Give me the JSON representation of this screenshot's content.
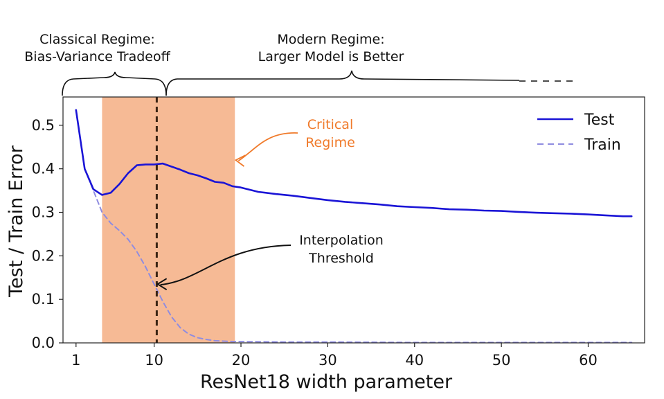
{
  "chart_data": {
    "type": "line",
    "xlabel": "ResNet18 width parameter",
    "ylabel": "Test / Train Error",
    "xlim": [
      -0.5,
      66.5
    ],
    "ylim": [
      0.0,
      0.565
    ],
    "x_ticks": [
      1,
      10,
      20,
      30,
      40,
      50,
      60
    ],
    "y_ticks": [
      0.0,
      0.1,
      0.2,
      0.3,
      0.4,
      0.5
    ],
    "y_tick_labels": [
      "0.0",
      "0.1",
      "0.2",
      "0.3",
      "0.4",
      "0.5"
    ],
    "grid": false,
    "legend": "top-right",
    "series": [
      {
        "name": "Test",
        "style": "solid",
        "color": "#1a14d6",
        "x": [
          1,
          2,
          3,
          4,
          5,
          6,
          7,
          8,
          9,
          10,
          11,
          12,
          13,
          14,
          15,
          16,
          17,
          18,
          19,
          20,
          22,
          24,
          26,
          28,
          30,
          32,
          34,
          36,
          38,
          40,
          42,
          44,
          46,
          48,
          50,
          52,
          54,
          56,
          58,
          60,
          62,
          64,
          65
        ],
        "values": [
          0.535,
          0.4,
          0.353,
          0.34,
          0.345,
          0.365,
          0.39,
          0.408,
          0.41,
          0.41,
          0.412,
          0.405,
          0.398,
          0.39,
          0.385,
          0.378,
          0.37,
          0.368,
          0.36,
          0.357,
          0.347,
          0.342,
          0.338,
          0.333,
          0.328,
          0.324,
          0.321,
          0.318,
          0.314,
          0.312,
          0.31,
          0.307,
          0.306,
          0.304,
          0.303,
          0.301,
          0.299,
          0.298,
          0.297,
          0.295,
          0.293,
          0.291,
          0.291
        ]
      },
      {
        "name": "Train",
        "style": "dashed",
        "color": "#8f8ce0",
        "x": [
          2,
          3,
          4,
          5,
          6,
          7,
          8,
          9,
          10,
          11,
          12,
          13,
          14,
          15,
          16,
          17,
          18,
          19,
          20,
          25,
          30,
          40,
          50,
          60,
          65
        ],
        "values": [
          0.4,
          0.35,
          0.3,
          0.275,
          0.258,
          0.238,
          0.21,
          0.175,
          0.135,
          0.095,
          0.06,
          0.035,
          0.02,
          0.012,
          0.008,
          0.005,
          0.004,
          0.003,
          0.003,
          0.002,
          0.002,
          0.001,
          0.001,
          0.001,
          0.001
        ]
      }
    ],
    "shaded_region": {
      "x_range": [
        4,
        19.3
      ],
      "color": "#f5b48c"
    },
    "vertical_line": {
      "x": 10.3,
      "style": "dashed",
      "color": "#3a2414"
    },
    "annotations": [
      {
        "text_lines": [
          "Critical",
          "Regime"
        ],
        "color": "#f07a2a",
        "arrow_target": [
          19.4,
          0.42
        ]
      },
      {
        "text_lines": [
          "Interpolation",
          "Threshold"
        ],
        "color": "#111111",
        "arrow_target": [
          10.4,
          0.135
        ]
      }
    ]
  },
  "regimes": {
    "classical": {
      "line1": "Classical Regime:",
      "line2": "Bias-Variance Tradeoff"
    },
    "modern": {
      "line1": "Modern Regime:",
      "line2": "Larger Model is Better"
    }
  },
  "colors": {
    "accent_orange": "#f07a2a",
    "shade": "#f5b48c",
    "test_blue": "#1a14d6",
    "train_lavender": "#8f8ce0"
  }
}
